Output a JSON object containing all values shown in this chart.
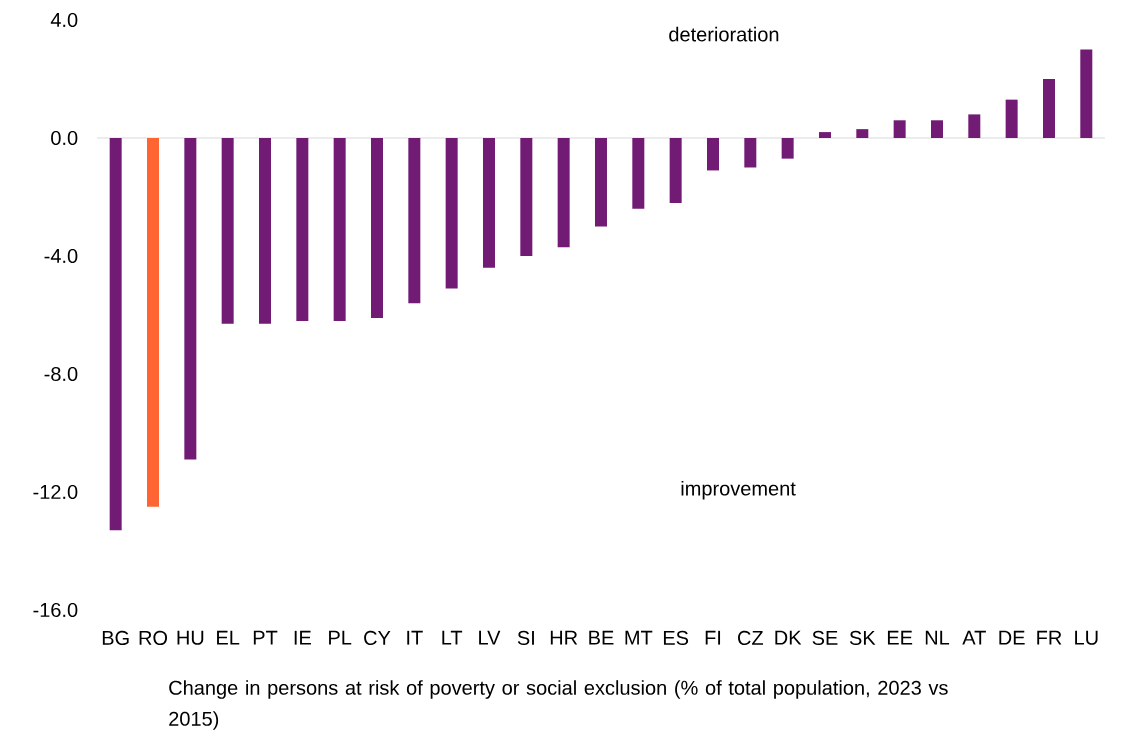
{
  "chart_data": {
    "type": "bar",
    "xlabel": "Change in persons at risk of poverty or social exclusion (% of total population, 2023 vs 2015)",
    "categories": [
      "BG",
      "RO",
      "HU",
      "EL",
      "PT",
      "IE",
      "PL",
      "CY",
      "IT",
      "LT",
      "LV",
      "SI",
      "HR",
      "BE",
      "MT",
      "ES",
      "FI",
      "CZ",
      "DK",
      "SE",
      "SK",
      "EE",
      "NL",
      "AT",
      "DE",
      "FR",
      "LU"
    ],
    "values": [
      -13.3,
      -12.5,
      -10.9,
      -6.3,
      -6.3,
      -6.2,
      -6.2,
      -6.1,
      -5.6,
      -5.1,
      -4.4,
      -4.0,
      -3.7,
      -3.0,
      -2.4,
      -2.2,
      -1.1,
      -1.0,
      -0.7,
      0.2,
      0.3,
      0.6,
      0.6,
      0.8,
      1.3,
      2.0,
      3.0
    ],
    "colors": [
      "#721b74",
      "#ff6433",
      "#721b74",
      "#721b74",
      "#721b74",
      "#721b74",
      "#721b74",
      "#721b74",
      "#721b74",
      "#721b74",
      "#721b74",
      "#721b74",
      "#721b74",
      "#721b74",
      "#721b74",
      "#721b74",
      "#721b74",
      "#721b74",
      "#721b74",
      "#721b74",
      "#721b74",
      "#721b74",
      "#721b74",
      "#721b74",
      "#721b74",
      "#721b74",
      "#721b74"
    ],
    "ylim": [
      -16,
      4
    ],
    "yticks": [
      {
        "value": 4,
        "label": "4.0"
      },
      {
        "value": 0,
        "label": "0.0"
      },
      {
        "value": -4,
        "label": "-4.0"
      },
      {
        "value": -8,
        "label": "-8.0"
      },
      {
        "value": -12,
        "label": "-12.0"
      },
      {
        "value": -16,
        "label": "-16.0"
      }
    ],
    "annotations": [
      "deterioration",
      "improvement"
    ],
    "ref_lines": [
      {
        "axis": "y",
        "value": 0,
        "color": "#d9d9d9"
      }
    ]
  }
}
